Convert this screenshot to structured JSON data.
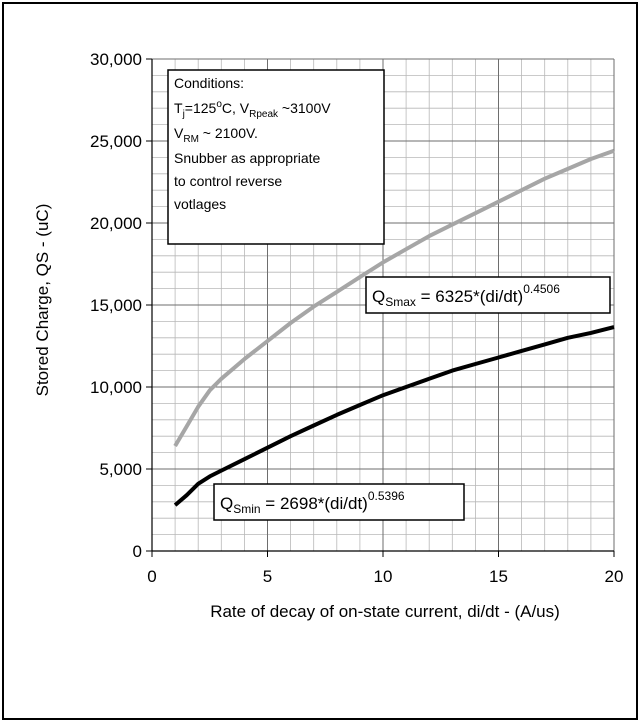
{
  "chart_data": {
    "type": "line",
    "xlabel": "Rate of decay of on-state current, di/dt - (A/us)",
    "ylabel": "Stored Charge,  QS - (uC)",
    "xlim": [
      0,
      20
    ],
    "ylim": [
      0,
      30000
    ],
    "x_ticks": [
      "0",
      "5",
      "10",
      "15",
      "20"
    ],
    "y_ticks": [
      "0",
      "5,000",
      "10,000",
      "15,000",
      "20,000",
      "25,000",
      "30,000"
    ],
    "grid": true,
    "series": [
      {
        "name": "QSmax",
        "color": "#a6a6a6",
        "x": [
          1,
          1.5,
          2,
          2.5,
          3,
          4,
          5,
          6,
          7,
          8,
          9,
          10,
          11,
          12,
          13,
          14,
          15,
          16,
          17,
          18,
          19,
          20
        ],
        "values": [
          6400,
          7600,
          8800,
          9800,
          10500,
          11700,
          12800,
          13900,
          14900,
          15800,
          16700,
          17600,
          18400,
          19200,
          19900,
          20600,
          21300,
          22000,
          22700,
          23300,
          23900,
          24400
        ]
      },
      {
        "name": "QSmin",
        "color": "#000000",
        "x": [
          1,
          1.5,
          2,
          2.5,
          3,
          4,
          5,
          6,
          7,
          8,
          9,
          10,
          11,
          12,
          13,
          14,
          15,
          16,
          17,
          18,
          19,
          20
        ],
        "values": [
          2800,
          3400,
          4100,
          4550,
          4900,
          5600,
          6300,
          7000,
          7650,
          8300,
          8900,
          9500,
          10000,
          10500,
          11000,
          11400,
          11800,
          12200,
          12600,
          13000,
          13300,
          13650
        ]
      }
    ],
    "conditions_box": {
      "line1": "Conditions:",
      "line2": {
        "t": "T",
        "t_sub": "j",
        "mid": "=125",
        "sup": "o",
        "rest": "C, V",
        "v_sub": "Rpeak",
        "end": " ~3100V"
      },
      "line3": {
        "v": "V",
        "v_sub": "RM",
        "end": " ~ 2100V."
      },
      "line4": "Snubber as appropriate",
      "line5": "to control reverse",
      "line6": "votlages"
    },
    "annotations": [
      {
        "q": "Q",
        "sub": "Smax",
        "eq": " = 6325*(di/dt)",
        "sup": "0.4506"
      },
      {
        "q": "Q",
        "sub": "Smin",
        "eq": " = 2698*(di/dt)",
        "sup": "0.5396"
      }
    ]
  }
}
